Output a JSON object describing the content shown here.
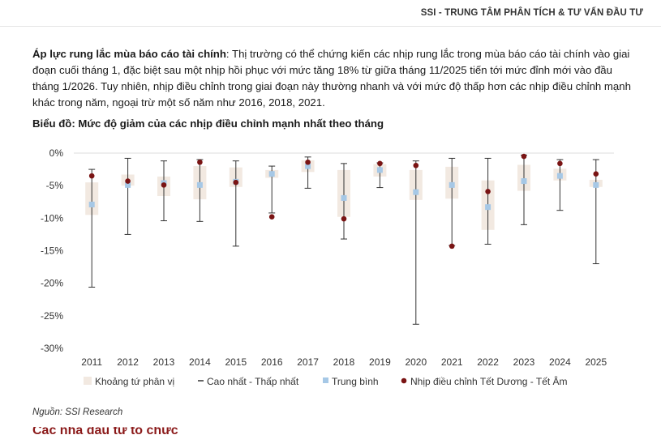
{
  "header": {
    "org": "SSI - TRUNG TÂM PHÂN TÍCH & TƯ VẤN ĐẦU TƯ"
  },
  "paragraph": {
    "lead": "Áp lực rung lắc mùa báo cáo tài chính",
    "body": ": Thị trường có thể chứng kiến các nhịp rung lắc trong mùa báo cáo tài chính vào giai đoạn cuối tháng 1, đặc biệt sau một nhịp hồi phục với mức tăng 18% từ giữa tháng 11/2025 tiến tới mức đỉnh mới vào đầu tháng 1/2026. Tuy nhiên, nhịp điều chỉnh trong giai đoạn này thường nhanh và với mức độ thấp hơn các nhịp điều chỉnh mạnh khác trong năm, ngoại trừ một số năm như 2016, 2018, 2021."
  },
  "source": "Nguồn: SSI Research",
  "next_heading": "Các nhà đầu tư tổ chức",
  "chart_data": {
    "type": "box",
    "title": "Biểu đồ: Mức độ giảm của các nhịp điều chỉnh mạnh nhất theo tháng",
    "categories": [
      "2011",
      "2012",
      "2013",
      "2014",
      "2015",
      "2016",
      "2017",
      "2018",
      "2019",
      "2020",
      "2021",
      "2022",
      "2023",
      "2024",
      "2025"
    ],
    "ylim": [
      -30,
      0
    ],
    "yticks": [
      0,
      -5,
      -10,
      -15,
      -20,
      -25,
      -30
    ],
    "ytick_labels": [
      "0%",
      "-5%",
      "-10%",
      "-15%",
      "-20%",
      "-25%",
      "-30%"
    ],
    "grid": "horizontal-zero-line",
    "legend_position": "bottom",
    "colors": {
      "iqr": "#f2e9e1",
      "range": "#333333",
      "mean": "#a6c8e6",
      "tet": "#7a1414"
    },
    "legend": [
      "Khoảng tứ phân vị",
      "Cao nhất - Thấp nhất",
      "Trung bình",
      "Nhịp điều chỉnh Tết Dương - Tết Âm"
    ],
    "series": {
      "max": [
        -2.5,
        -0.8,
        -1.2,
        -1.0,
        -1.2,
        -2.0,
        -0.6,
        -1.6,
        -1.5,
        -1.2,
        -0.8,
        -0.8,
        -0.3,
        -1.0,
        -1.0
      ],
      "min": [
        -20.6,
        -12.5,
        -10.4,
        -10.5,
        -14.3,
        -9.2,
        -5.4,
        -13.2,
        -5.3,
        -26.3,
        -14.2,
        -14.0,
        -11.0,
        -8.8,
        -17.0
      ],
      "q1": [
        -9.5,
        -5.0,
        -6.6,
        -7.1,
        -5.2,
        -3.8,
        -2.9,
        -9.8,
        -3.6,
        -7.2,
        -7.0,
        -11.8,
        -5.8,
        -4.2,
        -5.2
      ],
      "q3": [
        -4.5,
        -3.3,
        -3.6,
        -2.0,
        -2.2,
        -2.6,
        -1.1,
        -2.6,
        -1.7,
        -2.6,
        -2.1,
        -4.2,
        -1.8,
        -2.4,
        -4.1
      ],
      "mean": [
        -7.9,
        -4.9,
        -4.6,
        -4.9,
        -4.4,
        -3.2,
        -2.0,
        -6.9,
        -2.6,
        -6.0,
        -4.9,
        -8.3,
        -4.3,
        -3.5,
        -4.9
      ],
      "tet": [
        -3.5,
        -4.3,
        -4.9,
        -1.4,
        -4.5,
        -9.8,
        -1.4,
        -10.1,
        -1.6,
        -1.9,
        -14.3,
        -5.9,
        -0.5,
        -1.6,
        -3.2
      ]
    }
  }
}
